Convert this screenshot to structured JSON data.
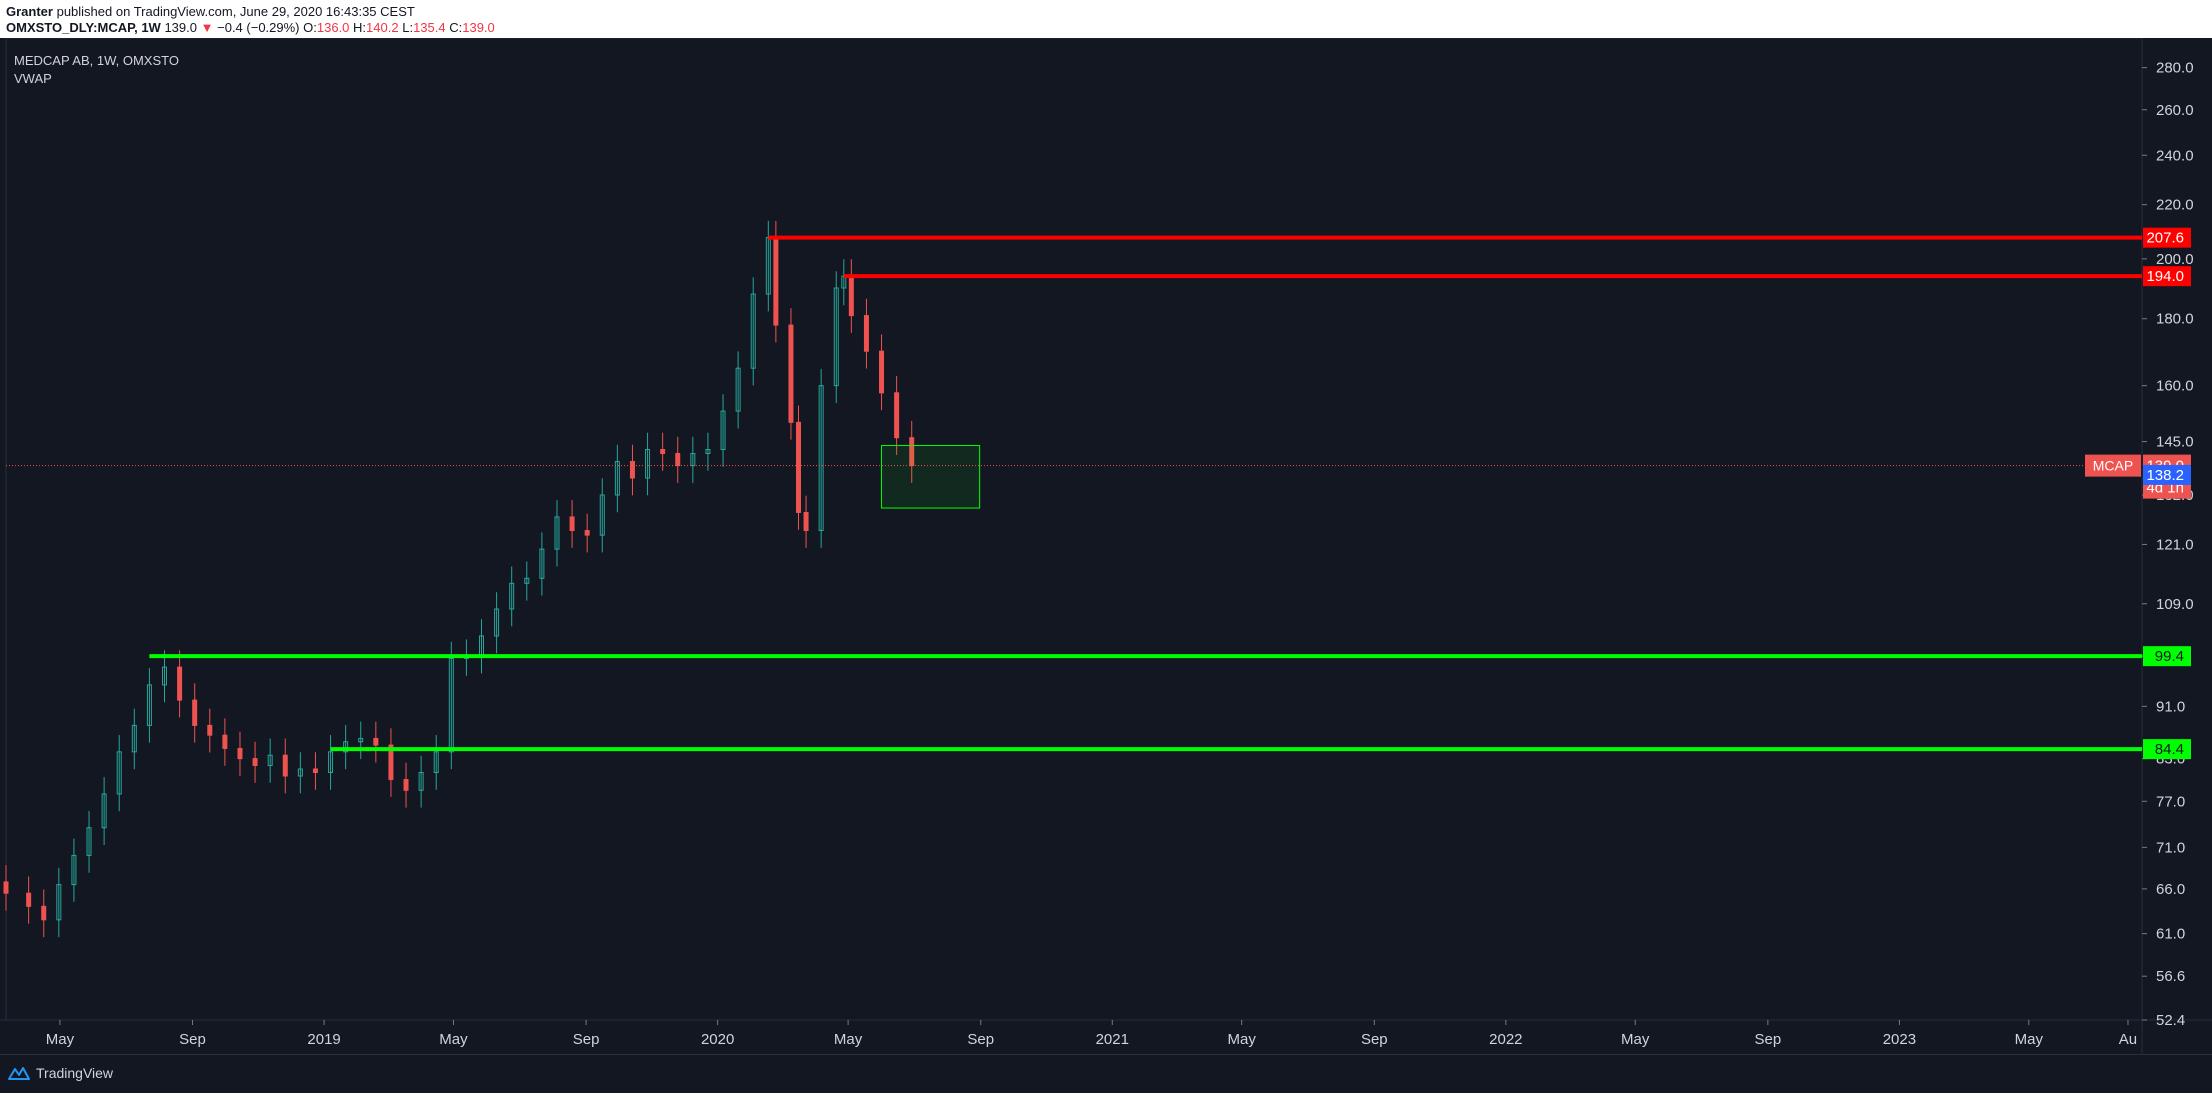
{
  "header": {
    "publisher": "Granter",
    "published_text": "published on TradingView.com, June 29, 2020 16:43:35 CEST",
    "symbol": "OMXSTO_DLY:MCAP, 1W",
    "last": "139.0",
    "change": "−0.4 (−0.29%)",
    "open_label": "O:",
    "open": "136.0",
    "high_label": "H:",
    "high": "140.2",
    "low_label": "L:",
    "low": "135.4",
    "close_label": "C:",
    "close": "139.0"
  },
  "legend": {
    "title": "MEDCAP AB, 1W, OMXSTO",
    "indicator": "VWAP"
  },
  "footer": {
    "brand": "TradingView",
    "logo_icon": "tradingview-logo-icon"
  },
  "colors": {
    "background": "#131722",
    "up": "#26a69a",
    "down": "#ef5350",
    "resistance": "#ff0000",
    "support": "#00ff00",
    "axis_text": "#d1d4dc"
  },
  "chart_data": {
    "type": "candlestick",
    "y_scale": "log",
    "ylim": [
      52.4,
      295
    ],
    "x_range": [
      "2018-03-12",
      "2023-08-14"
    ],
    "y_ticks": [
      "280.0",
      "260.0",
      "240.0",
      "220.0",
      "200.0",
      "180.0",
      "160.0",
      "145.0",
      "132.0",
      "121.0",
      "109.0",
      "99.4",
      "91.0",
      "83.0",
      "77.0",
      "71.0",
      "66.0",
      "61.0",
      "56.6",
      "52.4"
    ],
    "x_ticks": [
      {
        "label": "May",
        "date": "2018-05-01"
      },
      {
        "label": "Sep",
        "date": "2018-09-01"
      },
      {
        "label": "2019",
        "date": "2019-01-01"
      },
      {
        "label": "May",
        "date": "2019-05-01"
      },
      {
        "label": "Sep",
        "date": "2019-09-01"
      },
      {
        "label": "2020",
        "date": "2020-01-01"
      },
      {
        "label": "May",
        "date": "2020-05-01"
      },
      {
        "label": "Sep",
        "date": "2020-09-01"
      },
      {
        "label": "2021",
        "date": "2021-01-01"
      },
      {
        "label": "May",
        "date": "2021-05-01"
      },
      {
        "label": "Sep",
        "date": "2021-09-01"
      },
      {
        "label": "2022",
        "date": "2022-01-01"
      },
      {
        "label": "May",
        "date": "2022-05-01"
      },
      {
        "label": "Sep",
        "date": "2022-09-01"
      },
      {
        "label": "2023",
        "date": "2023-01-01"
      },
      {
        "label": "May",
        "date": "2023-05-01"
      },
      {
        "label": "Au",
        "date": "2023-08-01"
      }
    ],
    "candles": [
      {
        "date": "2018-03-12",
        "close": 65.5
      },
      {
        "date": "2018-04-02",
        "close": 64.0
      },
      {
        "date": "2018-04-16",
        "close": 62.5
      },
      {
        "date": "2018-04-30",
        "close": 66.5
      },
      {
        "date": "2018-05-14",
        "close": 70.0
      },
      {
        "date": "2018-05-28",
        "close": 73.5
      },
      {
        "date": "2018-06-11",
        "close": 78.0
      },
      {
        "date": "2018-06-25",
        "close": 84.0
      },
      {
        "date": "2018-07-09",
        "close": 88.0
      },
      {
        "date": "2018-07-23",
        "close": 94.5
      },
      {
        "date": "2018-08-06",
        "close": 97.5
      },
      {
        "date": "2018-08-20",
        "close": 92.0
      },
      {
        "date": "2018-09-03",
        "close": 88.0
      },
      {
        "date": "2018-09-17",
        "close": 86.5
      },
      {
        "date": "2018-10-01",
        "close": 84.5
      },
      {
        "date": "2018-10-15",
        "close": 83.0
      },
      {
        "date": "2018-10-29",
        "close": 82.0
      },
      {
        "date": "2018-11-12",
        "close": 83.5
      },
      {
        "date": "2018-11-26",
        "close": 80.5
      },
      {
        "date": "2018-12-10",
        "close": 81.5
      },
      {
        "date": "2018-12-24",
        "close": 81.0
      },
      {
        "date": "2019-01-07",
        "close": 84.0
      },
      {
        "date": "2019-01-21",
        "close": 85.5
      },
      {
        "date": "2019-02-04",
        "close": 86.0
      },
      {
        "date": "2019-02-18",
        "close": 85.0
      },
      {
        "date": "2019-03-04",
        "close": 80.0
      },
      {
        "date": "2019-03-18",
        "close": 78.5
      },
      {
        "date": "2019-04-01",
        "close": 81.0
      },
      {
        "date": "2019-04-15",
        "close": 84.0
      },
      {
        "date": "2019-04-29",
        "close": 99.0
      },
      {
        "date": "2019-05-13",
        "close": 99.4
      },
      {
        "date": "2019-05-27",
        "close": 103.0
      },
      {
        "date": "2019-06-10",
        "close": 108.0
      },
      {
        "date": "2019-06-24",
        "close": 113.0
      },
      {
        "date": "2019-07-08",
        "close": 114.0
      },
      {
        "date": "2019-07-22",
        "close": 120.0
      },
      {
        "date": "2019-08-05",
        "close": 127.0
      },
      {
        "date": "2019-08-19",
        "close": 124.0
      },
      {
        "date": "2019-09-02",
        "close": 123.0
      },
      {
        "date": "2019-09-16",
        "close": 132.0
      },
      {
        "date": "2019-09-30",
        "close": 140.0
      },
      {
        "date": "2019-10-14",
        "close": 136.0
      },
      {
        "date": "2019-10-28",
        "close": 143.0
      },
      {
        "date": "2019-11-11",
        "close": 142.0
      },
      {
        "date": "2019-11-25",
        "close": 139.0
      },
      {
        "date": "2019-12-09",
        "close": 142.0
      },
      {
        "date": "2019-12-23",
        "close": 143.0
      },
      {
        "date": "2020-01-06",
        "close": 153.0
      },
      {
        "date": "2020-01-20",
        "close": 165.0
      },
      {
        "date": "2020-02-03",
        "close": 188.0
      },
      {
        "date": "2020-02-17",
        "close": 207.6
      },
      {
        "date": "2020-02-24",
        "close": 178.0
      },
      {
        "date": "2020-03-09",
        "close": 150.0
      },
      {
        "date": "2020-03-16",
        "close": 128.0
      },
      {
        "date": "2020-03-23",
        "close": 124.0
      },
      {
        "date": "2020-04-06",
        "close": 160.0
      },
      {
        "date": "2020-04-20",
        "close": 190.0
      },
      {
        "date": "2020-04-27",
        "close": 194.0
      },
      {
        "date": "2020-05-04",
        "close": 181.0
      },
      {
        "date": "2020-05-18",
        "close": 170.0
      },
      {
        "date": "2020-06-01",
        "close": 158.0
      },
      {
        "date": "2020-06-15",
        "close": 146.0
      },
      {
        "date": "2020-06-29",
        "close": 139.0
      }
    ],
    "levels": [
      {
        "name": "resistance-1",
        "value": 207.6,
        "label": "207.6",
        "color": "#ff0000",
        "from": "2020-02-17"
      },
      {
        "name": "resistance-2",
        "value": 194.0,
        "label": "194.0",
        "color": "#ff0000",
        "from": "2020-04-27"
      },
      {
        "name": "support-1",
        "value": 99.4,
        "label": "99.4",
        "color": "#00ff00",
        "from": "2018-07-23"
      },
      {
        "name": "support-2",
        "value": 84.4,
        "label": "84.4",
        "color": "#00ff00",
        "from": "2019-01-07"
      }
    ],
    "zone": {
      "from": "2020-06-01",
      "to": "2020-08-31",
      "top": 144,
      "bottom": 129,
      "color": "#00ff00"
    },
    "last_price": {
      "value": 139.0,
      "symbol_label": "MCAP",
      "price_label": "139.0",
      "countdown": "4d 1h",
      "color": "#ef5350"
    },
    "vwap": {
      "value": 138.2,
      "label": "138.2",
      "color": "#2962ff"
    }
  }
}
